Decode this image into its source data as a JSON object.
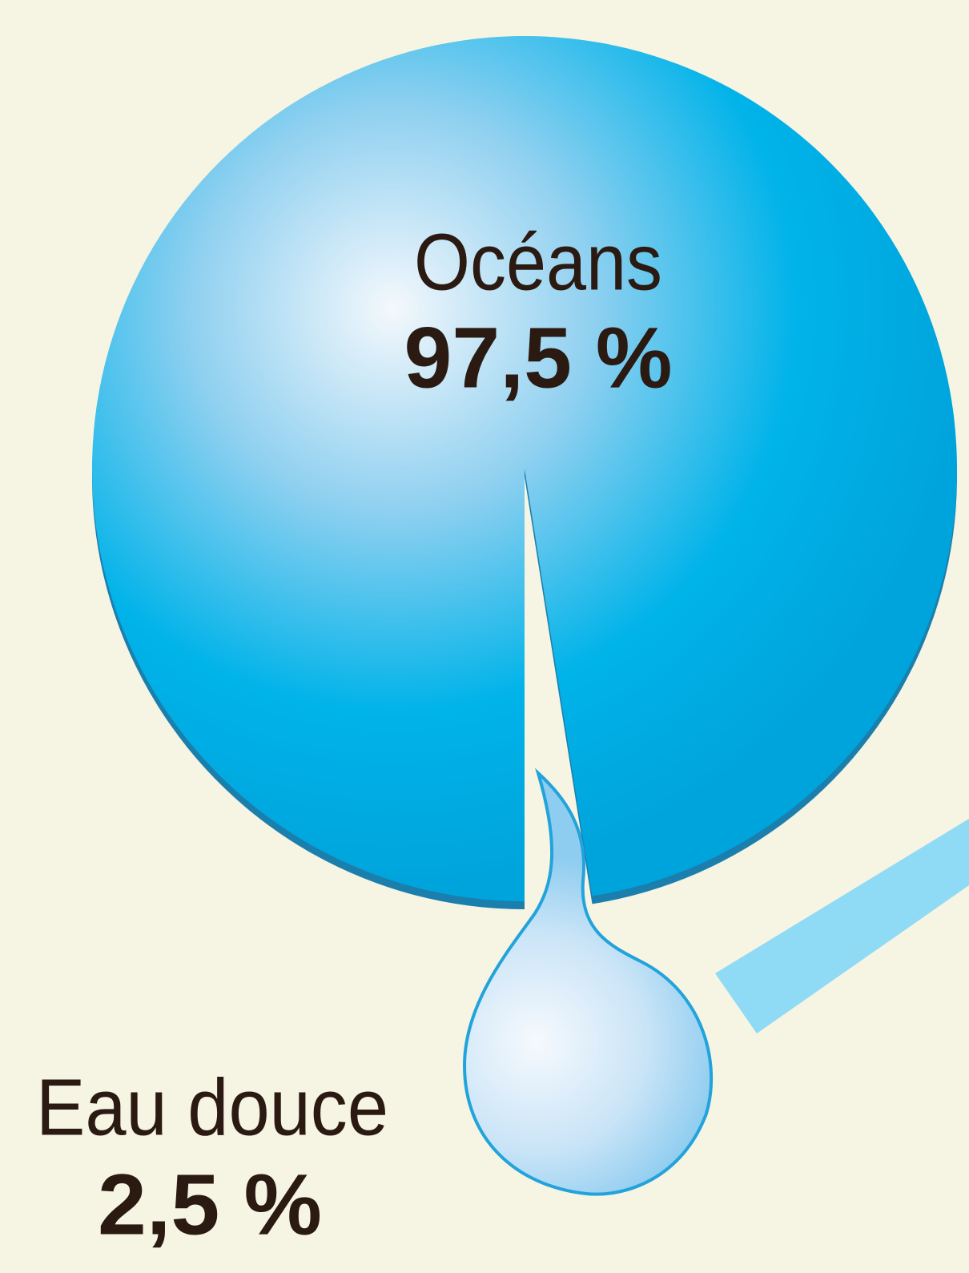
{
  "chart_data": {
    "type": "pie",
    "categories": [
      "Océans",
      "Eau douce"
    ],
    "values": [
      97.5,
      2.5
    ],
    "value_labels": [
      "97,5 %",
      "2,5 %"
    ],
    "colors": [
      "#00aee8",
      "#b9dff5"
    ]
  }
}
